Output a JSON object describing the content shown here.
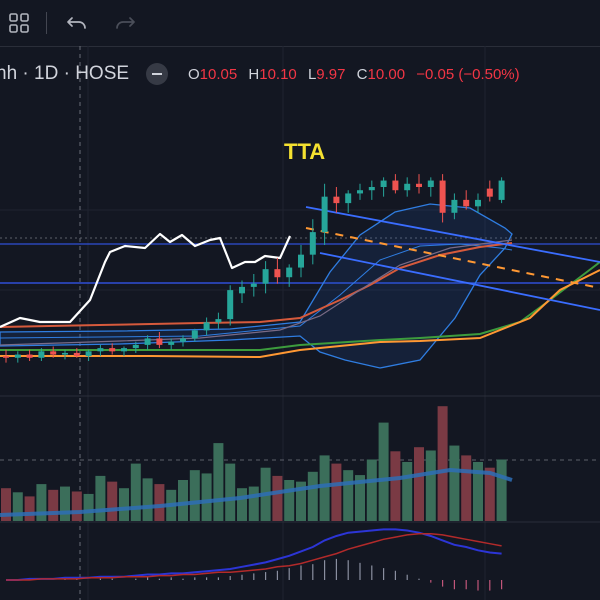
{
  "toolbar": {
    "layout_icon": "grid-icon",
    "undo_icon": "undo-icon",
    "redo_icon": "redo-icon"
  },
  "legend": {
    "symbol_text": "nh · 1D · HOSE",
    "open_label": "O",
    "open": "10.05",
    "high_label": "H",
    "high": "10.10",
    "low_label": "L",
    "low": "9.97",
    "close_label": "C",
    "close": "10.00",
    "change": "−0.05 (−0.50%)"
  },
  "chart_data": [
    {
      "type": "candlestick",
      "annotation": "TTA",
      "candles": [
        {
          "o": 9.01,
          "h": 9.05,
          "l": 8.97,
          "c": 9.0,
          "up": false
        },
        {
          "o": 9.0,
          "h": 9.04,
          "l": 8.97,
          "c": 9.02,
          "up": true
        },
        {
          "o": 9.02,
          "h": 9.05,
          "l": 8.98,
          "c": 9.0,
          "up": false
        },
        {
          "o": 9.0,
          "h": 9.06,
          "l": 8.98,
          "c": 9.04,
          "up": true
        },
        {
          "o": 9.04,
          "h": 9.07,
          "l": 9.0,
          "c": 9.02,
          "up": false
        },
        {
          "o": 9.02,
          "h": 9.05,
          "l": 8.99,
          "c": 9.03,
          "up": true
        },
        {
          "o": 9.03,
          "h": 9.06,
          "l": 9.0,
          "c": 9.01,
          "up": false
        },
        {
          "o": 9.01,
          "h": 9.05,
          "l": 8.98,
          "c": 9.04,
          "up": true
        },
        {
          "o": 9.04,
          "h": 9.08,
          "l": 9.01,
          "c": 9.06,
          "up": true
        },
        {
          "o": 9.06,
          "h": 9.09,
          "l": 9.02,
          "c": 9.04,
          "up": false
        },
        {
          "o": 9.04,
          "h": 9.07,
          "l": 9.01,
          "c": 9.06,
          "up": true
        },
        {
          "o": 9.06,
          "h": 9.1,
          "l": 9.03,
          "c": 9.08,
          "up": true
        },
        {
          "o": 9.08,
          "h": 9.14,
          "l": 9.05,
          "c": 9.12,
          "up": true
        },
        {
          "o": 9.12,
          "h": 9.16,
          "l": 9.06,
          "c": 9.08,
          "up": false
        },
        {
          "o": 9.08,
          "h": 9.12,
          "l": 9.05,
          "c": 9.1,
          "up": true
        },
        {
          "o": 9.1,
          "h": 9.14,
          "l": 9.07,
          "c": 9.12,
          "up": true
        },
        {
          "o": 9.12,
          "h": 9.18,
          "l": 9.1,
          "c": 9.17,
          "up": true
        },
        {
          "o": 9.17,
          "h": 9.25,
          "l": 9.14,
          "c": 9.22,
          "up": true
        },
        {
          "o": 9.22,
          "h": 9.28,
          "l": 9.18,
          "c": 9.24,
          "up": true
        },
        {
          "o": 9.24,
          "h": 9.45,
          "l": 9.2,
          "c": 9.42,
          "up": true
        },
        {
          "o": 9.4,
          "h": 9.48,
          "l": 9.34,
          "c": 9.44,
          "up": true
        },
        {
          "o": 9.44,
          "h": 9.52,
          "l": 9.38,
          "c": 9.46,
          "up": true
        },
        {
          "o": 9.46,
          "h": 9.6,
          "l": 9.4,
          "c": 9.55,
          "up": true
        },
        {
          "o": 9.55,
          "h": 9.62,
          "l": 9.46,
          "c": 9.5,
          "up": false
        },
        {
          "o": 9.5,
          "h": 9.58,
          "l": 9.44,
          "c": 9.56,
          "up": true
        },
        {
          "o": 9.56,
          "h": 9.7,
          "l": 9.5,
          "c": 9.64,
          "up": true
        },
        {
          "o": 9.64,
          "h": 9.86,
          "l": 9.58,
          "c": 9.78,
          "up": true
        },
        {
          "o": 9.78,
          "h": 10.08,
          "l": 9.7,
          "c": 10.0,
          "up": true
        },
        {
          "o": 10.0,
          "h": 10.06,
          "l": 9.9,
          "c": 9.96,
          "up": false
        },
        {
          "o": 9.96,
          "h": 10.04,
          "l": 9.9,
          "c": 10.02,
          "up": true
        },
        {
          "o": 10.02,
          "h": 10.08,
          "l": 9.98,
          "c": 10.04,
          "up": true
        },
        {
          "o": 10.04,
          "h": 10.1,
          "l": 9.98,
          "c": 10.06,
          "up": true
        },
        {
          "o": 10.06,
          "h": 10.12,
          "l": 10.0,
          "c": 10.1,
          "up": true
        },
        {
          "o": 10.1,
          "h": 10.14,
          "l": 10.02,
          "c": 10.04,
          "up": false
        },
        {
          "o": 10.04,
          "h": 10.12,
          "l": 10.0,
          "c": 10.08,
          "up": true
        },
        {
          "o": 10.08,
          "h": 10.14,
          "l": 10.02,
          "c": 10.06,
          "up": false
        },
        {
          "o": 10.06,
          "h": 10.12,
          "l": 10.0,
          "c": 10.1,
          "up": true
        },
        {
          "o": 10.1,
          "h": 10.14,
          "l": 9.84,
          "c": 9.9,
          "up": false
        },
        {
          "o": 9.9,
          "h": 10.02,
          "l": 9.86,
          "c": 9.98,
          "up": true
        },
        {
          "o": 9.98,
          "h": 10.04,
          "l": 9.92,
          "c": 9.94,
          "up": false
        },
        {
          "o": 9.94,
          "h": 10.02,
          "l": 9.9,
          "c": 9.98,
          "up": true
        },
        {
          "o": 10.05,
          "h": 10.1,
          "l": 9.97,
          "c": 10.0,
          "up": false
        },
        {
          "o": 9.98,
          "h": 10.12,
          "l": 9.96,
          "c": 10.1,
          "up": true
        }
      ],
      "volume": [
        40,
        35,
        30,
        45,
        38,
        42,
        36,
        33,
        55,
        48,
        40,
        70,
        52,
        45,
        38,
        50,
        62,
        58,
        95,
        70,
        40,
        42,
        65,
        55,
        50,
        48,
        60,
        80,
        70,
        62,
        56,
        75,
        120,
        85,
        72,
        90,
        86,
        140,
        92,
        80,
        72,
        65,
        75
      ],
      "volume_up": [
        false,
        true,
        false,
        true,
        false,
        true,
        false,
        true,
        true,
        false,
        true,
        true,
        true,
        false,
        true,
        true,
        true,
        true,
        true,
        true,
        true,
        true,
        true,
        false,
        true,
        true,
        true,
        true,
        false,
        true,
        true,
        true,
        true,
        false,
        true,
        false,
        true,
        false,
        true,
        false,
        true,
        false,
        true
      ],
      "macd": [
        0.0,
        0.0,
        0.01,
        0.01,
        0.01,
        0.02,
        0.02,
        0.02,
        0.03,
        0.03,
        0.03,
        0.04,
        0.05,
        0.05,
        0.06,
        0.06,
        0.07,
        0.08,
        0.09,
        0.1,
        0.12,
        0.14,
        0.16,
        0.19,
        0.22,
        0.26,
        0.3,
        0.36,
        0.4,
        0.43,
        0.44,
        0.45,
        0.46,
        0.46,
        0.45,
        0.43,
        0.4,
        0.36,
        0.32,
        0.3,
        0.27,
        0.25,
        0.24
      ],
      "signal": [
        0.0,
        0.0,
        0.0,
        0.01,
        0.01,
        0.01,
        0.01,
        0.02,
        0.02,
        0.02,
        0.03,
        0.03,
        0.03,
        0.04,
        0.04,
        0.05,
        0.05,
        0.06,
        0.07,
        0.07,
        0.08,
        0.09,
        0.1,
        0.12,
        0.13,
        0.15,
        0.18,
        0.21,
        0.24,
        0.28,
        0.31,
        0.34,
        0.37,
        0.39,
        0.41,
        0.42,
        0.42,
        0.41,
        0.39,
        0.37,
        0.35,
        0.33,
        0.31
      ],
      "colors": {
        "up": "#26a69a",
        "down": "#ef5350",
        "vol_up": "#3b6e5a",
        "vol_down": "#7a3a44",
        "annotation": "#f5e130",
        "channel": "#3a6dff",
        "bollinger": "#2f7de1",
        "ma_fast": "#d65a3c",
        "ma_orange": "#ff9833",
        "ma_green": "#3d9c3d",
        "white_line": "#ffffff",
        "macd": "#2c35d6",
        "signal": "#b22a2a",
        "vol_ma": "#2e6fb6"
      }
    }
  ]
}
